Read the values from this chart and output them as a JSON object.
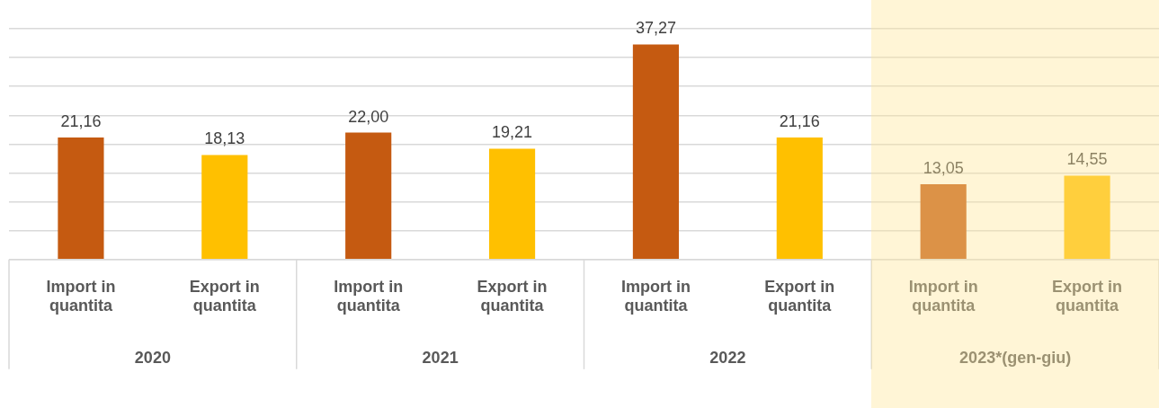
{
  "chart_data": {
    "type": "bar",
    "categories": [
      "Import in quantita",
      "Export in quantita",
      "Import in quantita",
      "Export in quantita",
      "Import in quantita",
      "Export in quantita",
      "Import in quantita",
      "Export in quantita"
    ],
    "values": [
      21.16,
      18.13,
      22.0,
      19.21,
      37.27,
      21.16,
      13.05,
      14.55
    ],
    "colors": [
      "#c55a11",
      "#ffc000",
      "#c55a11",
      "#ffc000",
      "#c55a11",
      "#ffc000",
      "#c55a11",
      "#ffc000"
    ],
    "value_labels": [
      "21,16",
      "18,13",
      "22,00",
      "19,21",
      "37,27",
      "21,16",
      "13,05",
      "14,55"
    ],
    "annotations": [
      "2020",
      "2021",
      "2022",
      "2023*(gen-giu)"
    ],
    "ylim": [
      0,
      40
    ],
    "yticks": [
      {
        "value": 0,
        "label": null
      },
      {
        "value": 5,
        "label": null
      },
      {
        "value": 10,
        "label": null
      },
      {
        "value": 15,
        "label": null
      },
      {
        "value": 20,
        "label": null
      },
      {
        "value": 25,
        "label": null
      },
      {
        "value": 30,
        "label": null
      },
      {
        "value": 35,
        "label": null
      },
      {
        "value": 40,
        "label": null
      }
    ],
    "tick_labels": "x",
    "grid": "y",
    "legend": false
  }
}
